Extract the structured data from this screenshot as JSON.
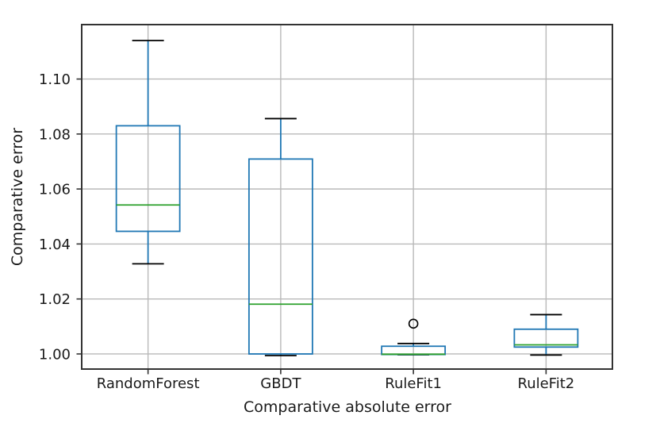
{
  "figure": {
    "background": "#ffffff",
    "title": ""
  },
  "chart_data": {
    "type": "boxplot",
    "title": "",
    "xlabel": "Comparative absolute error",
    "ylabel": "Comparative error",
    "categories": [
      "RandomForest",
      "GBDT",
      "RuleFit1",
      "RuleFit2"
    ],
    "boxes": [
      {
        "label": "RandomForest",
        "whisker_low": 1.0328,
        "q1": 1.0446,
        "median": 1.0542,
        "q3": 1.083,
        "whisker_high": 1.114,
        "outliers": []
      },
      {
        "label": "GBDT",
        "whisker_low": 0.9994,
        "q1": 1.0,
        "median": 1.0181,
        "q3": 1.0709,
        "whisker_high": 1.0856,
        "outliers": []
      },
      {
        "label": "RuleFit1",
        "whisker_low": 0.9997,
        "q1": 0.9998,
        "median": 0.9999,
        "q3": 1.0028,
        "whisker_high": 1.0038,
        "outliers": [
          1.011
        ]
      },
      {
        "label": "RuleFit2",
        "whisker_low": 0.9996,
        "q1": 1.0025,
        "median": 1.0033,
        "q3": 1.009,
        "whisker_high": 1.0143,
        "outliers": []
      }
    ],
    "yticks": {
      "values": [
        1.0,
        1.02,
        1.04,
        1.06,
        1.08,
        1.1
      ],
      "labels": [
        "1.00",
        "1.02",
        "1.04",
        "1.06",
        "1.08",
        "1.10"
      ]
    },
    "ylim": [
      0.9945,
      1.1198
    ],
    "grid": true,
    "legend": null,
    "colors": {
      "box": "#1f77b4",
      "whisker": "#1f77b4",
      "cap": "#000000",
      "median": "#2ca02c",
      "outlier": "#000000",
      "grid": "#b9b9b9",
      "spine": "#333333",
      "tick": "#333333",
      "text": "#1a1a1a"
    }
  }
}
